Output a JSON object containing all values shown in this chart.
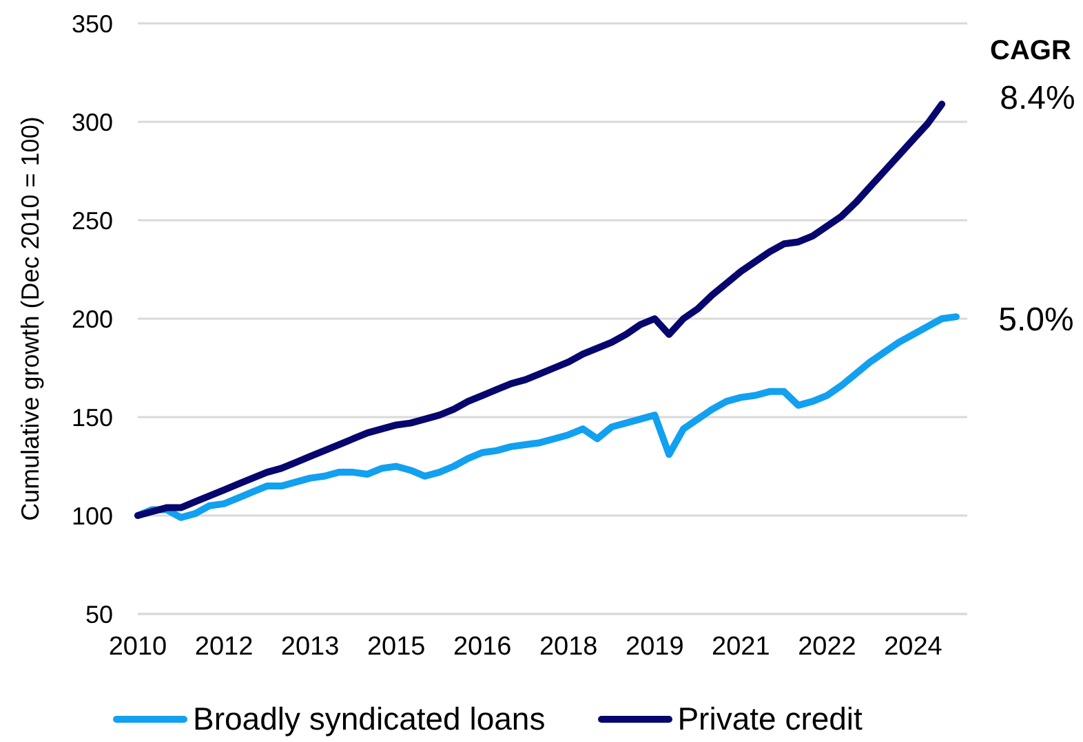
{
  "chart_data": {
    "type": "line",
    "ylabel": "Cumulative growth (Dec 2010 = 100)",
    "categories": [
      "2010",
      null,
      null,
      null,
      null,
      null,
      "2012",
      null,
      null,
      null,
      null,
      null,
      "2013",
      null,
      null,
      null,
      null,
      null,
      "2015",
      null,
      null,
      null,
      null,
      null,
      "2016",
      null,
      null,
      null,
      null,
      null,
      "2018",
      null,
      null,
      null,
      null,
      null,
      "2019",
      null,
      null,
      null,
      null,
      null,
      "2021",
      null,
      null,
      null,
      null,
      null,
      "2022",
      null,
      null,
      null,
      null,
      null,
      "2024",
      null,
      null,
      null
    ],
    "series": [
      {
        "name": "Broadly syndicated loans",
        "color": "#12a0f0",
        "values": [
          100,
          103,
          103,
          99,
          101,
          105,
          106,
          109,
          112,
          115,
          115,
          117,
          119,
          120,
          122,
          122,
          121,
          124,
          125,
          123,
          120,
          122,
          125,
          129,
          132,
          133,
          135,
          136,
          137,
          139,
          141,
          144,
          139,
          145,
          147,
          149,
          151,
          131,
          144,
          149,
          154,
          158,
          160,
          161,
          163,
          163,
          156,
          158,
          161,
          166,
          172,
          178,
          183,
          188,
          192,
          196,
          200,
          201
        ]
      },
      {
        "name": "Private credit",
        "color": "#06066e",
        "values": [
          100,
          102,
          104,
          104,
          107,
          110,
          113,
          116,
          119,
          122,
          124,
          127,
          130,
          133,
          136,
          139,
          142,
          144,
          146,
          147,
          149,
          151,
          154,
          158,
          161,
          164,
          167,
          169,
          172,
          175,
          178,
          182,
          185,
          188,
          192,
          197,
          200,
          192,
          200,
          205,
          212,
          218,
          224,
          229,
          234,
          238,
          239,
          242,
          247,
          252,
          259,
          267,
          275,
          283,
          291,
          299,
          309,
          null
        ]
      }
    ],
    "ylim": [
      50,
      350
    ],
    "yticks": [
      50,
      100,
      150,
      200,
      250,
      300,
      350
    ],
    "grid": "y",
    "legend": "bottom",
    "marker": "none",
    "line_style": "solid",
    "annotations": [
      "CAGR",
      "8.4%",
      "5.0%"
    ]
  }
}
